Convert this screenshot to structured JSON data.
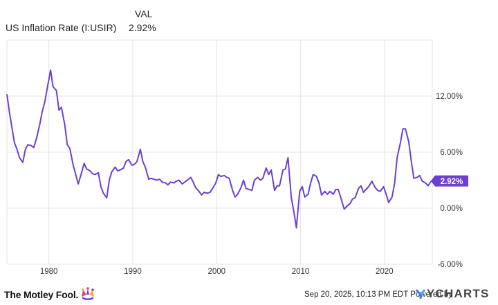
{
  "header": {
    "val_label": "VAL",
    "series_name": "US Inflation Rate (I:USIR)",
    "last_value": "2.92%"
  },
  "footer": {
    "brand": "The Motley Fool.",
    "timestamp": "Sep 20, 2025, 10:13 PM EDT",
    "powered_by": "Powered by",
    "provider": "YCHARTS"
  },
  "colors": {
    "line": "#6b3fd4",
    "grid": "#e4e4e4",
    "axis_text": "#333333",
    "badge_bg": "#6b3fd4",
    "badge_text": "#ffffff"
  },
  "chart_data": {
    "type": "line",
    "x_axis": {
      "type": "date",
      "range": [
        1975.0,
        2025.7
      ],
      "ticks": [
        1980,
        1990,
        2000,
        2010,
        2020
      ]
    },
    "y_axis": {
      "range": [
        -6.0,
        18.0
      ],
      "position": "right",
      "ticks": [
        12,
        6,
        0,
        -6
      ],
      "tick_labels": [
        "12.00%",
        "6.00%",
        "0.00%",
        "-6.00%"
      ]
    },
    "grid": true,
    "last_label": "2.92%",
    "series": [
      {
        "values": [
          [
            1975.0,
            12.2
          ],
          [
            1975.3,
            10.3
          ],
          [
            1975.6,
            8.6
          ],
          [
            1975.9,
            7.0
          ],
          [
            1976.2,
            6.3
          ],
          [
            1976.5,
            5.4
          ],
          [
            1976.9,
            4.9
          ],
          [
            1977.2,
            6.3
          ],
          [
            1977.5,
            6.8
          ],
          [
            1977.9,
            6.7
          ],
          [
            1978.2,
            6.5
          ],
          [
            1978.5,
            7.4
          ],
          [
            1978.9,
            8.9
          ],
          [
            1979.2,
            10.3
          ],
          [
            1979.5,
            11.3
          ],
          [
            1979.9,
            13.3
          ],
          [
            1980.2,
            14.8
          ],
          [
            1980.5,
            13.0
          ],
          [
            1980.9,
            12.6
          ],
          [
            1981.2,
            10.5
          ],
          [
            1981.5,
            10.8
          ],
          [
            1981.9,
            8.9
          ],
          [
            1982.2,
            6.8
          ],
          [
            1982.5,
            6.4
          ],
          [
            1982.9,
            4.6
          ],
          [
            1983.2,
            3.6
          ],
          [
            1983.5,
            2.6
          ],
          [
            1983.9,
            3.8
          ],
          [
            1984.2,
            4.8
          ],
          [
            1984.5,
            4.2
          ],
          [
            1984.9,
            4.0
          ],
          [
            1985.2,
            3.7
          ],
          [
            1985.5,
            3.6
          ],
          [
            1985.9,
            3.8
          ],
          [
            1986.2,
            2.3
          ],
          [
            1986.5,
            1.6
          ],
          [
            1986.9,
            1.1
          ],
          [
            1987.2,
            3.0
          ],
          [
            1987.5,
            3.9
          ],
          [
            1987.9,
            4.4
          ],
          [
            1988.2,
            4.0
          ],
          [
            1988.5,
            4.1
          ],
          [
            1988.9,
            4.3
          ],
          [
            1989.2,
            5.0
          ],
          [
            1989.5,
            5.2
          ],
          [
            1989.9,
            4.6
          ],
          [
            1990.2,
            4.7
          ],
          [
            1990.5,
            5.0
          ],
          [
            1990.9,
            6.3
          ],
          [
            1991.2,
            5.0
          ],
          [
            1991.5,
            4.4
          ],
          [
            1991.9,
            3.1
          ],
          [
            1992.2,
            3.2
          ],
          [
            1992.5,
            3.1
          ],
          [
            1992.9,
            3.0
          ],
          [
            1993.2,
            3.1
          ],
          [
            1993.5,
            2.8
          ],
          [
            1993.9,
            2.7
          ],
          [
            1994.2,
            2.5
          ],
          [
            1994.5,
            2.8
          ],
          [
            1994.9,
            2.7
          ],
          [
            1995.2,
            2.9
          ],
          [
            1995.5,
            3.0
          ],
          [
            1995.9,
            2.6
          ],
          [
            1996.2,
            2.8
          ],
          [
            1996.5,
            3.0
          ],
          [
            1996.9,
            3.3
          ],
          [
            1997.2,
            2.8
          ],
          [
            1997.5,
            2.2
          ],
          [
            1997.9,
            1.8
          ],
          [
            1998.2,
            1.4
          ],
          [
            1998.5,
            1.7
          ],
          [
            1998.9,
            1.6
          ],
          [
            1999.2,
            1.7
          ],
          [
            1999.5,
            2.1
          ],
          [
            1999.9,
            2.7
          ],
          [
            2000.2,
            3.6
          ],
          [
            2000.5,
            3.4
          ],
          [
            2000.9,
            3.5
          ],
          [
            2001.2,
            3.3
          ],
          [
            2001.5,
            3.2
          ],
          [
            2001.9,
            1.9
          ],
          [
            2002.2,
            1.2
          ],
          [
            2002.5,
            1.5
          ],
          [
            2002.9,
            2.2
          ],
          [
            2003.2,
            3.0
          ],
          [
            2003.5,
            2.1
          ],
          [
            2003.9,
            2.0
          ],
          [
            2004.2,
            1.9
          ],
          [
            2004.5,
            3.0
          ],
          [
            2004.9,
            3.3
          ],
          [
            2005.2,
            3.0
          ],
          [
            2005.5,
            3.2
          ],
          [
            2005.9,
            4.3
          ],
          [
            2006.2,
            3.6
          ],
          [
            2006.5,
            4.1
          ],
          [
            2006.9,
            1.9
          ],
          [
            2007.2,
            2.4
          ],
          [
            2007.5,
            2.4
          ],
          [
            2007.9,
            4.1
          ],
          [
            2008.2,
            4.2
          ],
          [
            2008.5,
            5.4
          ],
          [
            2008.9,
            1.1
          ],
          [
            2009.2,
            -0.4
          ],
          [
            2009.5,
            -2.1
          ],
          [
            2009.9,
            1.8
          ],
          [
            2010.2,
            2.3
          ],
          [
            2010.5,
            1.2
          ],
          [
            2010.9,
            1.5
          ],
          [
            2011.2,
            2.7
          ],
          [
            2011.5,
            3.6
          ],
          [
            2011.9,
            3.4
          ],
          [
            2012.2,
            2.7
          ],
          [
            2012.5,
            1.4
          ],
          [
            2012.9,
            1.8
          ],
          [
            2013.2,
            1.5
          ],
          [
            2013.5,
            1.8
          ],
          [
            2013.9,
            1.5
          ],
          [
            2014.2,
            2.0
          ],
          [
            2014.5,
            2.0
          ],
          [
            2014.9,
            0.8
          ],
          [
            2015.2,
            -0.1
          ],
          [
            2015.5,
            0.2
          ],
          [
            2015.9,
            0.5
          ],
          [
            2016.2,
            1.0
          ],
          [
            2016.5,
            1.1
          ],
          [
            2016.9,
            2.1
          ],
          [
            2017.2,
            2.4
          ],
          [
            2017.5,
            1.7
          ],
          [
            2017.9,
            2.1
          ],
          [
            2018.2,
            2.4
          ],
          [
            2018.5,
            2.9
          ],
          [
            2018.9,
            2.2
          ],
          [
            2019.2,
            1.9
          ],
          [
            2019.5,
            1.8
          ],
          [
            2019.9,
            2.3
          ],
          [
            2020.2,
            1.5
          ],
          [
            2020.5,
            0.6
          ],
          [
            2020.9,
            1.2
          ],
          [
            2021.2,
            2.6
          ],
          [
            2021.5,
            5.4
          ],
          [
            2021.9,
            7.0
          ],
          [
            2022.2,
            8.5
          ],
          [
            2022.5,
            8.5
          ],
          [
            2022.9,
            7.1
          ],
          [
            2023.2,
            5.0
          ],
          [
            2023.5,
            3.2
          ],
          [
            2023.9,
            3.3
          ],
          [
            2024.2,
            3.5
          ],
          [
            2024.5,
            2.9
          ],
          [
            2024.9,
            2.7
          ],
          [
            2025.2,
            2.4
          ],
          [
            2025.4,
            2.7
          ],
          [
            2025.6,
            2.92
          ]
        ]
      }
    ]
  }
}
